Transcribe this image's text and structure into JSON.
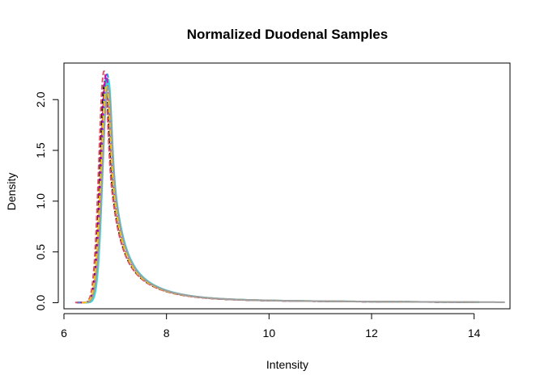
{
  "chart_data": {
    "type": "line",
    "title": "Normalized Duodenal Samples",
    "xlabel": "Intensity",
    "ylabel": "Density",
    "xlim": [
      6.0,
      14.7
    ],
    "ylim": [
      -0.06,
      2.36
    ],
    "xticks": [
      6,
      8,
      10,
      12,
      14
    ],
    "xtick_labels": [
      "6",
      "8",
      "10",
      "12",
      "14"
    ],
    "yticks": [
      0.0,
      0.5,
      1.0,
      1.5,
      2.0
    ],
    "ytick_labels": [
      "0.0",
      "0.5",
      "1.0",
      "1.5",
      "2.0"
    ],
    "grid": false,
    "legend": "none",
    "series": [
      {
        "color": "#000000",
        "dash": "6,3",
        "x_start": 6.25,
        "x_end": 14.1,
        "peak_x": 6.8,
        "peak_y": 2.18,
        "width_left": 0.1,
        "tail_scale": 0.7
      },
      {
        "color": "#DF536B",
        "dash": "6,3",
        "x_start": 6.22,
        "x_end": 14.0,
        "peak_x": 6.78,
        "peak_y": 2.28,
        "width_left": 0.1,
        "tail_scale": 0.68
      },
      {
        "color": "#61D04F",
        "dash": "6,3",
        "x_start": 6.3,
        "x_end": 13.9,
        "peak_x": 6.82,
        "peak_y": 2.2,
        "width_left": 0.1,
        "tail_scale": 0.7
      },
      {
        "color": "#2297E6",
        "dash": "6,3",
        "x_start": 6.28,
        "x_end": 14.1,
        "peak_x": 6.84,
        "peak_y": 2.25,
        "width_left": 0.1,
        "tail_scale": 0.71
      },
      {
        "color": "#28E2E5",
        "dash": "",
        "x_start": 6.4,
        "x_end": 14.1,
        "peak_x": 6.86,
        "peak_y": 2.2,
        "width_left": 0.1,
        "tail_scale": 0.72
      },
      {
        "color": "#CD0BBC",
        "dash": "6,3",
        "x_start": 6.32,
        "x_end": 14.0,
        "peak_x": 6.82,
        "peak_y": 2.24,
        "width_left": 0.1,
        "tail_scale": 0.69
      },
      {
        "color": "#F5C710",
        "dash": "6,3",
        "x_start": 6.35,
        "x_end": 14.1,
        "peak_x": 6.83,
        "peak_y": 2.14,
        "width_left": 0.11,
        "tail_scale": 0.72
      },
      {
        "color": "#9E9E9E",
        "dash": "",
        "x_start": 6.45,
        "x_end": 14.6,
        "peak_x": 6.86,
        "peak_y": 2.12,
        "width_left": 0.11,
        "tail_scale": 0.73
      }
    ]
  }
}
